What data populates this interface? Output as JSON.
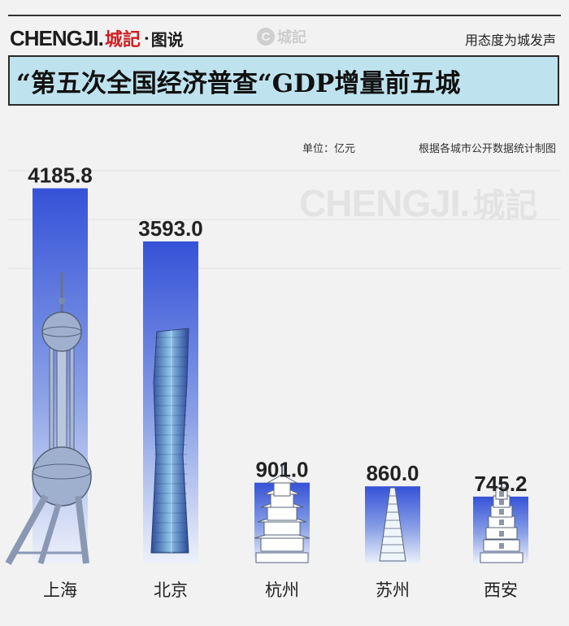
{
  "header": {
    "brand_latin": "CHENGJI.",
    "brand_cn": "城記",
    "brand_sep": "·",
    "brand_sub": "图说",
    "watermark_letter": "C",
    "watermark_text": "城記",
    "slogan": "用态度为城发声"
  },
  "title": "“第五次全国经济普查“GDP增量前五城",
  "unit": "单位：亿元",
  "source": "根据各城市公开数据统计制图",
  "watermark_big": {
    "latin": "CHENGJI.",
    "cn": "城記"
  },
  "colors": {
    "title_bg": "#bfe3ee",
    "bar_top": "#3552d8",
    "bar_bottom": "#e9eef9",
    "brand_red": "#d01e20"
  },
  "chart_data": {
    "type": "bar",
    "categories": [
      "上海",
      "北京",
      "杭州",
      "苏州",
      "西安"
    ],
    "values": [
      4185.8,
      3593.0,
      901.0,
      860.0,
      745.2
    ],
    "value_labels": [
      "4185.8",
      "3593.0",
      "901.0",
      "860.0",
      "745.2"
    ],
    "title": "“第五次全国经济普查“GDP增量前五城",
    "ylim": [
      0,
      4400
    ],
    "grid": true,
    "landmark_icons": [
      "oriental-pearl-tower-icon",
      "citic-tower-icon",
      "leifeng-pagoda-icon",
      "tiger-hill-pagoda-icon",
      "wild-goose-pagoda-icon"
    ]
  }
}
